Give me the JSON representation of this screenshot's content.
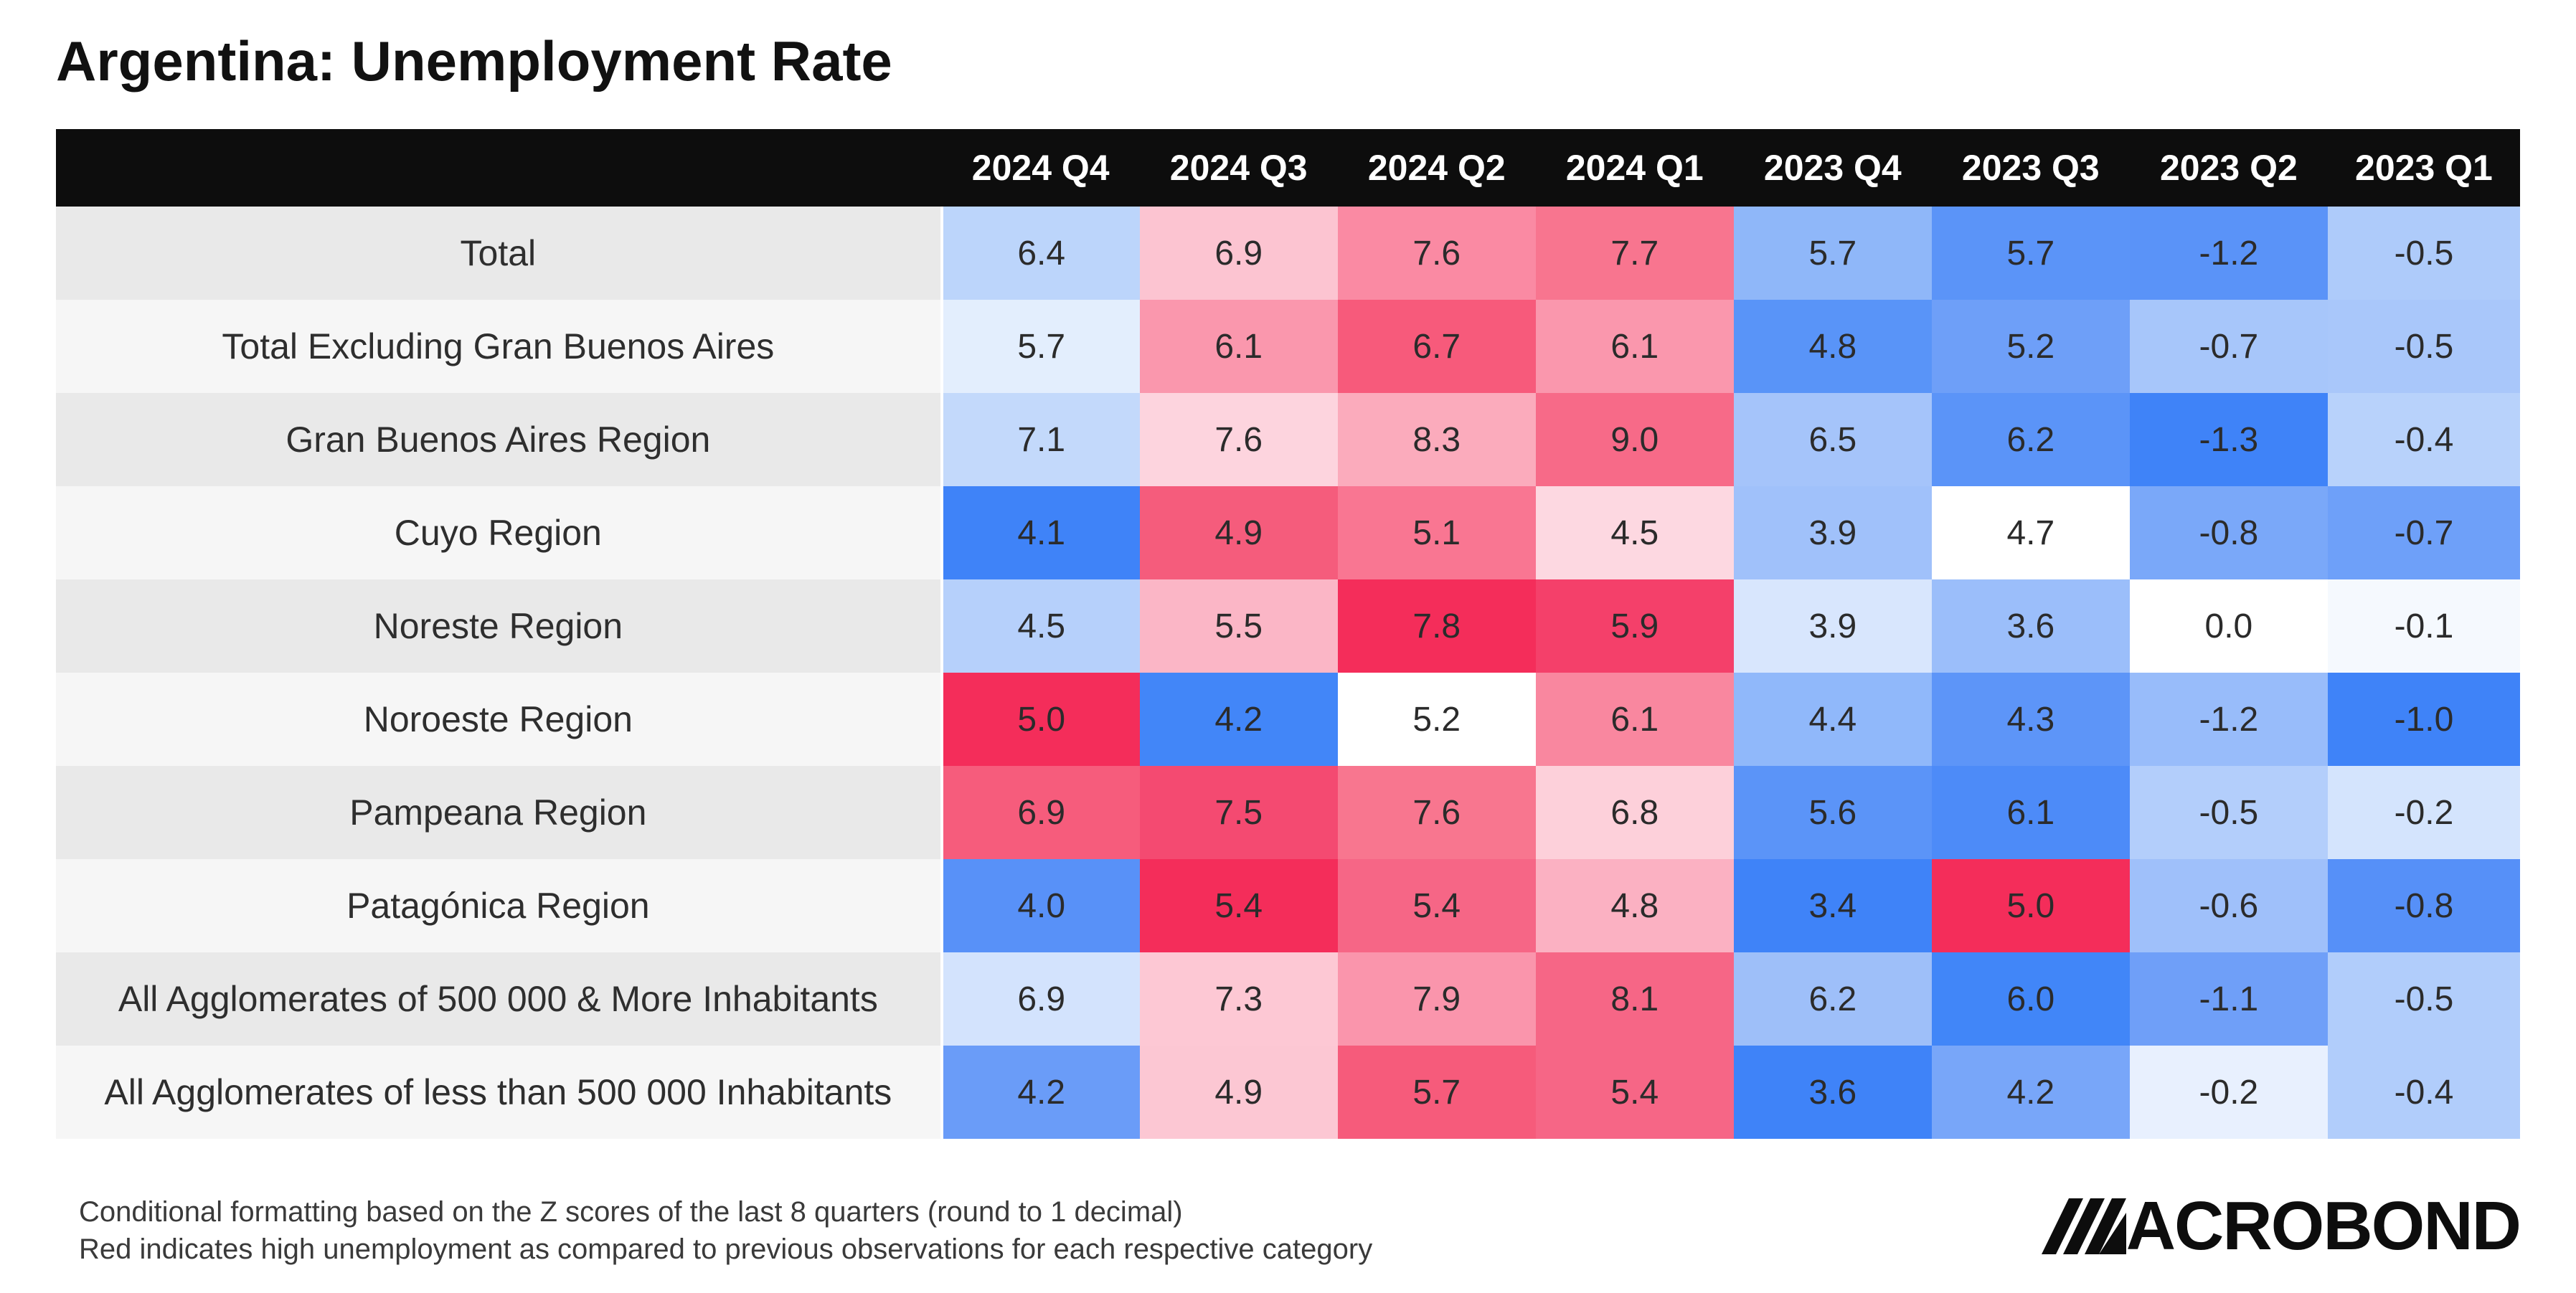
{
  "title": "Argentina: Unemployment Rate",
  "footnote": {
    "line1": "Conditional formatting based on the Z scores of the last 8 quarters (round to 1 decimal)",
    "line2": "Red indicates high unemployment as compared to previous observations for each respective category"
  },
  "logo": {
    "text": "ACROBOND",
    "full_text": "MACROBOND"
  },
  "colors": {
    "header_bg": "#0d0d0d",
    "high_red": "#f42d5a",
    "low_blue": "#3f83f8",
    "neutral": "#ffffff"
  },
  "chart_data": {
    "type": "heatmap",
    "title": "Argentina: Unemployment Rate",
    "columns": [
      "2024 Q4",
      "2024 Q3",
      "2024 Q2",
      "2024 Q1",
      "2023 Q4",
      "2023 Q3",
      "2023 Q2",
      "2023 Q1"
    ],
    "rows": [
      {
        "label": "Total",
        "values": [
          "6.4",
          "6.9",
          "7.6",
          "7.7",
          "5.7",
          "5.7",
          "-1.2",
          "-0.5"
        ],
        "colors": [
          "#bcd5fb",
          "#fcc4d1",
          "#fa8aa3",
          "#f8758f",
          "#8fb7f9",
          "#5b94f8",
          "#5a93f8",
          "#aecbfa"
        ]
      },
      {
        "label": "Total Excluding Gran Buenos Aires",
        "values": [
          "5.7",
          "6.1",
          "6.7",
          "6.1",
          "4.8",
          "5.2",
          "-0.7",
          "-0.5"
        ],
        "colors": [
          "#e3eefd",
          "#fa97ad",
          "#f75a7b",
          "#fa97ad",
          "#5994f8",
          "#6e9ff8",
          "#a7c6fa",
          "#a9c7fa"
        ]
      },
      {
        "label": "Gran Buenos Aires Region",
        "values": [
          "7.1",
          "7.6",
          "8.3",
          "9.0",
          "6.5",
          "6.2",
          "-1.3",
          "-0.4"
        ],
        "colors": [
          "#c3d9fb",
          "#fdd4de",
          "#fbabbc",
          "#f76a88",
          "#a5c4fa",
          "#5b94f8",
          "#3f83f8",
          "#b8d2fb"
        ]
      },
      {
        "label": "Cuyo Region",
        "values": [
          "4.1",
          "4.9",
          "5.1",
          "4.5",
          "3.9",
          "4.7",
          "-0.8",
          "-0.7"
        ],
        "colors": [
          "#3f83f8",
          "#f55c7c",
          "#f97692",
          "#fdd8e1",
          "#a0c1fa",
          "#ffffff",
          "#7aa8f9",
          "#6ea0f9"
        ]
      },
      {
        "label": "Noreste Region",
        "values": [
          "4.5",
          "5.5",
          "7.8",
          "5.9",
          "3.9",
          "3.6",
          "0.0",
          "-0.1"
        ],
        "colors": [
          "#b6d0fb",
          "#fbb6c6",
          "#f42d5a",
          "#f4406a",
          "#d8e6fd",
          "#9bbefa",
          "#ffffff",
          "#f5f9fe"
        ]
      },
      {
        "label": "Noroeste Region",
        "values": [
          "5.0",
          "4.2",
          "5.2",
          "6.1",
          "4.4",
          "4.3",
          "-1.2",
          "-1.0"
        ],
        "colors": [
          "#f42d5a",
          "#4286f8",
          "#ffffff",
          "#f9879f",
          "#90b8fa",
          "#5d95f8",
          "#98bcfa",
          "#3f83f8"
        ]
      },
      {
        "label": "Pampeana Region",
        "values": [
          "6.9",
          "7.5",
          "7.6",
          "6.8",
          "5.6",
          "6.1",
          "-0.5",
          "-0.2"
        ],
        "colors": [
          "#f65c7c",
          "#f44a71",
          "#f8768f",
          "#fdd0da",
          "#5b94f8",
          "#4d8bf8",
          "#b3cefb",
          "#d4e4fd"
        ]
      },
      {
        "label": "Patagónica Region",
        "values": [
          "4.0",
          "5.4",
          "5.4",
          "4.8",
          "3.4",
          "5.0",
          "-0.6",
          "-0.8"
        ],
        "colors": [
          "#5891f8",
          "#f42d5a",
          "#f66686",
          "#fbb1c2",
          "#3f83f8",
          "#f42d5a",
          "#9fc0fa",
          "#5690f8"
        ]
      },
      {
        "label": "All Agglomerates of 500 000 & More Inhabitants",
        "values": [
          "6.9",
          "7.3",
          "7.9",
          "8.1",
          "6.2",
          "6.0",
          "-1.1",
          "-0.5"
        ],
        "colors": [
          "#d3e3fd",
          "#fdc8d4",
          "#fa95ac",
          "#f66686",
          "#9ebff9",
          "#4186f8",
          "#6f9ff8",
          "#b1cdfb"
        ]
      },
      {
        "label": "All Agglomerates of less than 500 000 Inhabitants",
        "values": [
          "4.2",
          "4.9",
          "5.7",
          "5.4",
          "3.6",
          "4.2",
          "-0.2",
          "-0.4"
        ],
        "colors": [
          "#6a9cf8",
          "#fcc7d3",
          "#f65b7b",
          "#f66686",
          "#3f83f8",
          "#78a6f9",
          "#e8f0fe",
          "#b1cdfb"
        ]
      }
    ]
  }
}
